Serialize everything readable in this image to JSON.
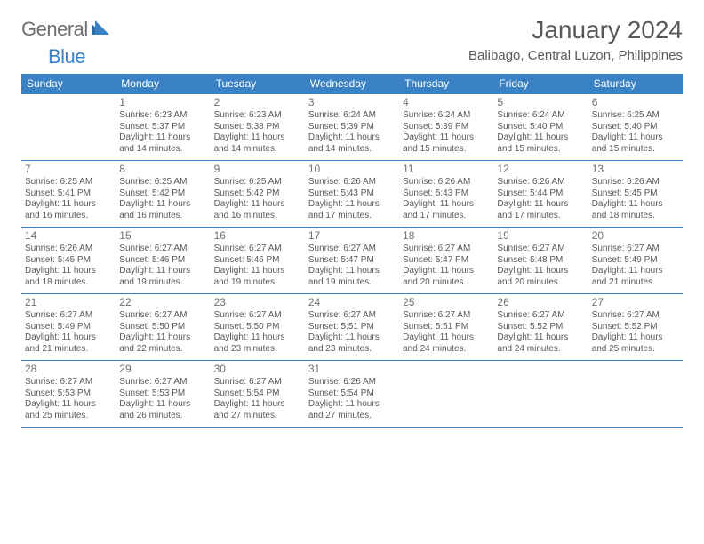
{
  "logo": {
    "word1": "General",
    "word2": "Blue"
  },
  "title": "January 2024",
  "location": "Balibago, Central Luzon, Philippines",
  "colors": {
    "accent": "#3a82c4",
    "text": "#595959",
    "muted": "#6f6f6f",
    "background": "#ffffff"
  },
  "day_headers": [
    "Sunday",
    "Monday",
    "Tuesday",
    "Wednesday",
    "Thursday",
    "Friday",
    "Saturday"
  ],
  "typography": {
    "title_fontsize": 28,
    "location_fontsize": 15,
    "header_fontsize": 12,
    "daynum_fontsize": 12,
    "body_fontsize": 10
  },
  "weeks": [
    [
      null,
      {
        "n": "1",
        "sunrise": "Sunrise: 6:23 AM",
        "sunset": "Sunset: 5:37 PM",
        "daylight": "Daylight: 11 hours and 14 minutes."
      },
      {
        "n": "2",
        "sunrise": "Sunrise: 6:23 AM",
        "sunset": "Sunset: 5:38 PM",
        "daylight": "Daylight: 11 hours and 14 minutes."
      },
      {
        "n": "3",
        "sunrise": "Sunrise: 6:24 AM",
        "sunset": "Sunset: 5:39 PM",
        "daylight": "Daylight: 11 hours and 14 minutes."
      },
      {
        "n": "4",
        "sunrise": "Sunrise: 6:24 AM",
        "sunset": "Sunset: 5:39 PM",
        "daylight": "Daylight: 11 hours and 15 minutes."
      },
      {
        "n": "5",
        "sunrise": "Sunrise: 6:24 AM",
        "sunset": "Sunset: 5:40 PM",
        "daylight": "Daylight: 11 hours and 15 minutes."
      },
      {
        "n": "6",
        "sunrise": "Sunrise: 6:25 AM",
        "sunset": "Sunset: 5:40 PM",
        "daylight": "Daylight: 11 hours and 15 minutes."
      }
    ],
    [
      {
        "n": "7",
        "sunrise": "Sunrise: 6:25 AM",
        "sunset": "Sunset: 5:41 PM",
        "daylight": "Daylight: 11 hours and 16 minutes."
      },
      {
        "n": "8",
        "sunrise": "Sunrise: 6:25 AM",
        "sunset": "Sunset: 5:42 PM",
        "daylight": "Daylight: 11 hours and 16 minutes."
      },
      {
        "n": "9",
        "sunrise": "Sunrise: 6:25 AM",
        "sunset": "Sunset: 5:42 PM",
        "daylight": "Daylight: 11 hours and 16 minutes."
      },
      {
        "n": "10",
        "sunrise": "Sunrise: 6:26 AM",
        "sunset": "Sunset: 5:43 PM",
        "daylight": "Daylight: 11 hours and 17 minutes."
      },
      {
        "n": "11",
        "sunrise": "Sunrise: 6:26 AM",
        "sunset": "Sunset: 5:43 PM",
        "daylight": "Daylight: 11 hours and 17 minutes."
      },
      {
        "n": "12",
        "sunrise": "Sunrise: 6:26 AM",
        "sunset": "Sunset: 5:44 PM",
        "daylight": "Daylight: 11 hours and 17 minutes."
      },
      {
        "n": "13",
        "sunrise": "Sunrise: 6:26 AM",
        "sunset": "Sunset: 5:45 PM",
        "daylight": "Daylight: 11 hours and 18 minutes."
      }
    ],
    [
      {
        "n": "14",
        "sunrise": "Sunrise: 6:26 AM",
        "sunset": "Sunset: 5:45 PM",
        "daylight": "Daylight: 11 hours and 18 minutes."
      },
      {
        "n": "15",
        "sunrise": "Sunrise: 6:27 AM",
        "sunset": "Sunset: 5:46 PM",
        "daylight": "Daylight: 11 hours and 19 minutes."
      },
      {
        "n": "16",
        "sunrise": "Sunrise: 6:27 AM",
        "sunset": "Sunset: 5:46 PM",
        "daylight": "Daylight: 11 hours and 19 minutes."
      },
      {
        "n": "17",
        "sunrise": "Sunrise: 6:27 AM",
        "sunset": "Sunset: 5:47 PM",
        "daylight": "Daylight: 11 hours and 19 minutes."
      },
      {
        "n": "18",
        "sunrise": "Sunrise: 6:27 AM",
        "sunset": "Sunset: 5:47 PM",
        "daylight": "Daylight: 11 hours and 20 minutes."
      },
      {
        "n": "19",
        "sunrise": "Sunrise: 6:27 AM",
        "sunset": "Sunset: 5:48 PM",
        "daylight": "Daylight: 11 hours and 20 minutes."
      },
      {
        "n": "20",
        "sunrise": "Sunrise: 6:27 AM",
        "sunset": "Sunset: 5:49 PM",
        "daylight": "Daylight: 11 hours and 21 minutes."
      }
    ],
    [
      {
        "n": "21",
        "sunrise": "Sunrise: 6:27 AM",
        "sunset": "Sunset: 5:49 PM",
        "daylight": "Daylight: 11 hours and 21 minutes."
      },
      {
        "n": "22",
        "sunrise": "Sunrise: 6:27 AM",
        "sunset": "Sunset: 5:50 PM",
        "daylight": "Daylight: 11 hours and 22 minutes."
      },
      {
        "n": "23",
        "sunrise": "Sunrise: 6:27 AM",
        "sunset": "Sunset: 5:50 PM",
        "daylight": "Daylight: 11 hours and 23 minutes."
      },
      {
        "n": "24",
        "sunrise": "Sunrise: 6:27 AM",
        "sunset": "Sunset: 5:51 PM",
        "daylight": "Daylight: 11 hours and 23 minutes."
      },
      {
        "n": "25",
        "sunrise": "Sunrise: 6:27 AM",
        "sunset": "Sunset: 5:51 PM",
        "daylight": "Daylight: 11 hours and 24 minutes."
      },
      {
        "n": "26",
        "sunrise": "Sunrise: 6:27 AM",
        "sunset": "Sunset: 5:52 PM",
        "daylight": "Daylight: 11 hours and 24 minutes."
      },
      {
        "n": "27",
        "sunrise": "Sunrise: 6:27 AM",
        "sunset": "Sunset: 5:52 PM",
        "daylight": "Daylight: 11 hours and 25 minutes."
      }
    ],
    [
      {
        "n": "28",
        "sunrise": "Sunrise: 6:27 AM",
        "sunset": "Sunset: 5:53 PM",
        "daylight": "Daylight: 11 hours and 25 minutes."
      },
      {
        "n": "29",
        "sunrise": "Sunrise: 6:27 AM",
        "sunset": "Sunset: 5:53 PM",
        "daylight": "Daylight: 11 hours and 26 minutes."
      },
      {
        "n": "30",
        "sunrise": "Sunrise: 6:27 AM",
        "sunset": "Sunset: 5:54 PM",
        "daylight": "Daylight: 11 hours and 27 minutes."
      },
      {
        "n": "31",
        "sunrise": "Sunrise: 6:26 AM",
        "sunset": "Sunset: 5:54 PM",
        "daylight": "Daylight: 11 hours and 27 minutes."
      },
      null,
      null,
      null
    ]
  ]
}
